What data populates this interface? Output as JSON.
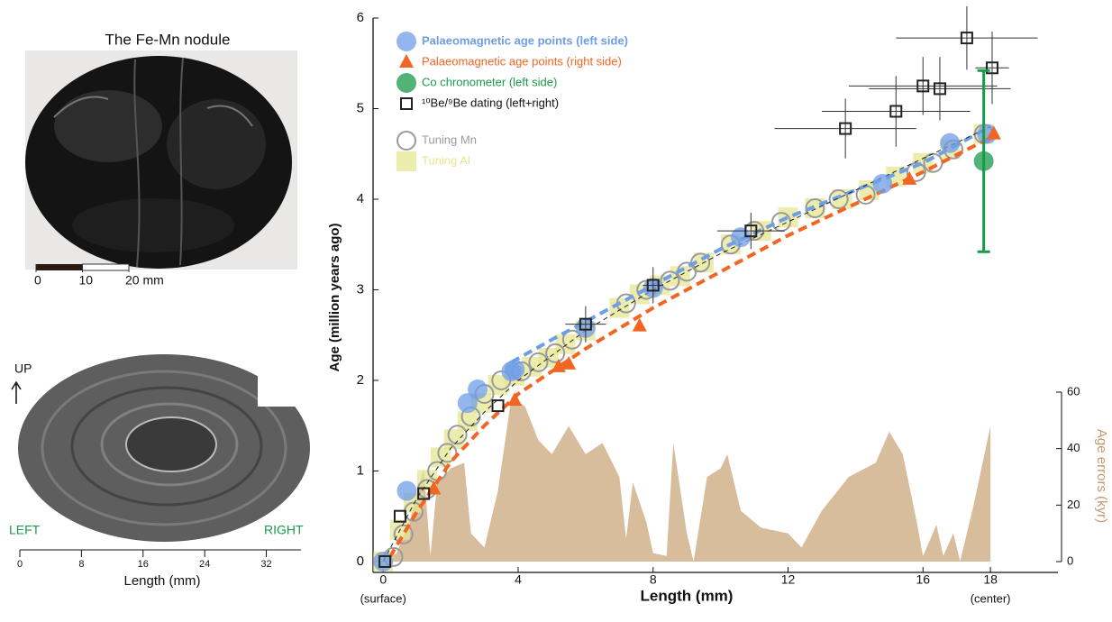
{
  "panels": {
    "nodule": {
      "title": "The Fe-Mn nodule",
      "scale_lim": [
        0,
        20
      ],
      "scale_ticks": [
        0,
        10,
        {
          "value": 20,
          "label": "20 mm"
        }
      ]
    },
    "section": {
      "up_label": "UP",
      "left_label": "LEFT",
      "right_label": "RIGHT",
      "xlabel": "Length (mm)",
      "xlim": [
        0,
        36.5
      ],
      "xticks": [
        0,
        8,
        16,
        24,
        32
      ]
    }
  },
  "chart_data": {
    "type": "scatter",
    "xlabel": "Length (mm)",
    "ylabel": "Age (million years ago)",
    "y2label": "Age errors (kyr)",
    "xlim": [
      -0.3,
      20
    ],
    "xticks": [
      0,
      4,
      8,
      12,
      16,
      18
    ],
    "ylim": [
      -0.12,
      6
    ],
    "yticks": [
      0,
      1,
      2,
      3,
      4,
      5,
      6
    ],
    "y2lim": [
      0,
      60
    ],
    "y2ticks": [
      0,
      20,
      40,
      60
    ],
    "annotations": [
      {
        "text": "(surface)",
        "x": 0
      },
      {
        "text": "(center)",
        "x": 18
      }
    ],
    "area": {
      "axis": "y2",
      "color": "#d7bd9c",
      "x": [
        0,
        0.4,
        0.8,
        1.2,
        1.4,
        1.6,
        2.0,
        2.4,
        2.6,
        3.0,
        3.4,
        3.8,
        4.2,
        4.6,
        5.0,
        5.5,
        6.0,
        6.5,
        7.0,
        7.2,
        7.4,
        7.8,
        8.0,
        8.4,
        8.6,
        9.0,
        9.2,
        9.6,
        10.0,
        10.2,
        10.6,
        11.2,
        12.0,
        12.4,
        13.0,
        13.8,
        14.6,
        15.0,
        15.4,
        15.8,
        16.0,
        16.4,
        16.6,
        16.9,
        17.1,
        17.5,
        18.0
      ],
      "values": [
        0,
        3,
        15,
        33,
        2,
        28,
        33,
        35,
        10,
        5,
        25,
        58,
        55,
        43,
        38,
        48,
        38,
        42,
        30,
        8,
        28,
        14,
        3,
        2,
        42,
        10,
        0,
        30,
        33,
        38,
        18,
        12,
        10,
        5,
        18,
        30,
        35,
        46,
        38,
        15,
        2,
        13,
        2,
        10,
        0,
        20,
        48
      ]
    },
    "fits": [
      {
        "color": "#6f9ee8",
        "x": [
          3.8,
          5,
          6,
          7,
          8,
          10,
          12,
          14,
          16,
          18
        ],
        "values": [
          2.2,
          2.45,
          2.65,
          2.85,
          3.05,
          3.45,
          3.8,
          4.1,
          4.4,
          4.8
        ]
      },
      {
        "color": "#f26522",
        "x": [
          0.2,
          1,
          2,
          3,
          4,
          5,
          6,
          8,
          10,
          12,
          14,
          16,
          18
        ],
        "values": [
          0.05,
          0.55,
          1.1,
          1.5,
          1.85,
          2.1,
          2.35,
          2.8,
          3.2,
          3.6,
          3.95,
          4.3,
          4.68
        ]
      },
      {
        "color": "#222222",
        "x": [
          0,
          1,
          2,
          3,
          4,
          6,
          8,
          10,
          12,
          14,
          16,
          18
        ],
        "values": [
          0,
          0.7,
          1.25,
          1.65,
          2.0,
          2.55,
          3.0,
          3.4,
          3.75,
          4.1,
          4.45,
          4.8
        ]
      }
    ],
    "series": [
      {
        "name": "Palaeomagnetic age points (left side)",
        "marker": "circle",
        "color": "#6f9ee8",
        "x": [
          0,
          0.7,
          2.5,
          2.8,
          3.8,
          3.9,
          6.0,
          8.0,
          10.6,
          14.8,
          16.8,
          17.9
        ],
        "values": [
          0,
          0.78,
          1.75,
          1.9,
          2.1,
          2.12,
          2.58,
          3.02,
          3.58,
          4.17,
          4.62,
          4.72
        ]
      },
      {
        "name": "Palaeomagnetic age points (right side)",
        "marker": "triangle",
        "color": "#f26522",
        "x": [
          1.5,
          3.9,
          5.2,
          5.5,
          7.6,
          15.6,
          18.1
        ],
        "values": [
          0.8,
          1.78,
          2.15,
          2.18,
          2.6,
          4.22,
          4.72
        ]
      },
      {
        "name": "Co chronometer (left side)",
        "marker": "circle",
        "color": "#1a9a4a",
        "x": [
          17.8
        ],
        "values": [
          4.42
        ],
        "errors": [
          1.0
        ]
      },
      {
        "name": "¹⁰Be/⁹Be dating (left+right)",
        "marker": "open-square",
        "color": "#222222",
        "x": [
          0.05,
          0.5,
          1.2,
          3.4,
          6.0,
          8.0,
          10.9,
          13.7,
          15.2,
          16.0,
          16.5,
          17.3,
          18.05
        ],
        "values": [
          0,
          0.5,
          0.75,
          1.72,
          2.62,
          3.05,
          3.65,
          4.78,
          4.97,
          5.25,
          5.22,
          5.78,
          5.45
        ],
        "xerr": [
          0,
          0,
          0,
          0,
          0.6,
          0.3,
          1.0,
          2.1,
          2.2,
          2.2,
          2.1,
          2.1,
          0.5
        ],
        "yerr": [
          0,
          0,
          0,
          0,
          0.2,
          0.2,
          0.2,
          0.33,
          0.39,
          0.32,
          0.35,
          0.35,
          0.4
        ]
      },
      {
        "name": "Tuning Mn",
        "marker": "open-circle",
        "color": "#9a9a9a",
        "x": [
          0.3,
          0.6,
          0.9,
          1.3,
          1.6,
          1.9,
          2.2,
          2.6,
          3.0,
          3.5,
          4.1,
          4.6,
          5.1,
          5.6,
          7.2,
          7.8,
          8.5,
          9.0,
          9.4,
          10.3,
          11.0,
          11.8,
          12.8,
          13.5,
          14.3,
          15.8,
          16.3,
          16.9,
          17.8
        ],
        "values": [
          0.05,
          0.3,
          0.55,
          0.8,
          1.0,
          1.2,
          1.4,
          1.6,
          1.85,
          2.0,
          2.1,
          2.2,
          2.3,
          2.45,
          2.85,
          3.0,
          3.1,
          3.2,
          3.3,
          3.5,
          3.65,
          3.75,
          3.9,
          4.0,
          4.05,
          4.3,
          4.4,
          4.55,
          4.72
        ]
      },
      {
        "name": "Tuning Al",
        "marker": "square",
        "color": "#e6e690",
        "x": [
          0,
          0.5,
          0.9,
          1.3,
          1.7,
          2.1,
          2.5,
          2.9,
          3.4,
          3.9,
          4.4,
          4.9,
          5.4,
          6.0,
          7.0,
          7.6,
          8.2,
          8.8,
          9.5,
          10.3,
          11.2,
          12.0,
          12.8,
          13.6,
          14.4,
          15.2,
          16.0,
          16.8,
          17.8
        ],
        "values": [
          0,
          0.35,
          0.65,
          0.9,
          1.15,
          1.35,
          1.55,
          1.75,
          1.95,
          2.05,
          2.15,
          2.25,
          2.4,
          2.55,
          2.8,
          2.95,
          3.05,
          3.15,
          3.3,
          3.5,
          3.65,
          3.8,
          3.9,
          4.0,
          4.1,
          4.25,
          4.4,
          4.55,
          4.72
        ]
      }
    ]
  }
}
